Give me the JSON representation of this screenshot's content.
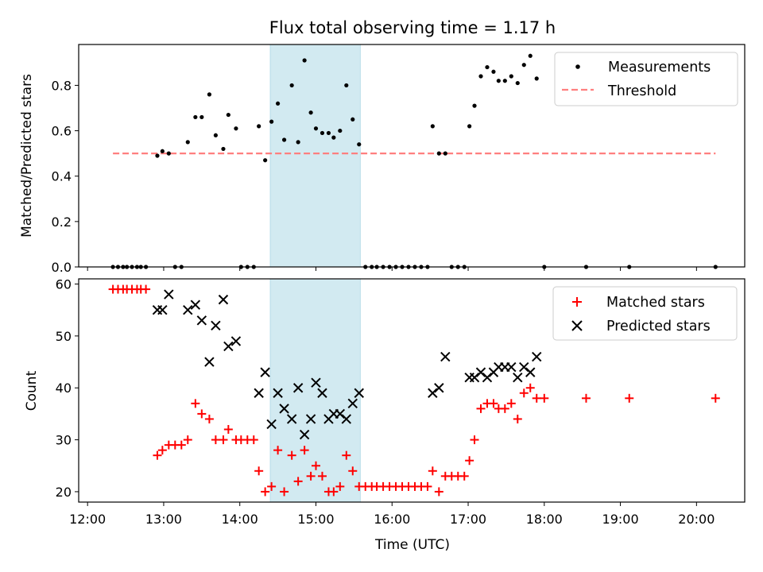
{
  "title": "Flux total observing time = 1.17 h",
  "xlabel": "Time (UTC)",
  "x_tick_labels": [
    "12:00",
    "13:00",
    "14:00",
    "15:00",
    "16:00",
    "17:00",
    "18:00",
    "19:00",
    "20:00"
  ],
  "colors": {
    "measurement": "#000000",
    "threshold": "#ff7f7f",
    "matched": "#ff0000",
    "predicted": "#000000",
    "highlight": "#add8e6"
  },
  "chart_data": [
    {
      "type": "scatter",
      "ylabel": "Matched/Predicted stars",
      "xlim": [
        "11:53",
        "20:38"
      ],
      "ylim": [
        0,
        0.98
      ],
      "y_ticks": [
        "0.0",
        "0.2",
        "0.4",
        "0.6",
        "0.8"
      ],
      "highlight_span": [
        "14:24",
        "15:35"
      ],
      "legend": {
        "position": "top-right",
        "entries": [
          "Measurements",
          "Threshold"
        ]
      },
      "threshold": {
        "name": "Threshold",
        "value": 0.5,
        "x_start": "12:20",
        "x_end": "20:15"
      },
      "series": [
        {
          "name": "Measurements",
          "points": [
            [
              "12:20",
              0
            ],
            [
              "12:24",
              0
            ],
            [
              "12:28",
              0
            ],
            [
              "12:31",
              0
            ],
            [
              "12:35",
              0
            ],
            [
              "12:39",
              0
            ],
            [
              "12:42",
              0
            ],
            [
              "12:46",
              0
            ],
            [
              "12:55",
              0.49
            ],
            [
              "12:59",
              0.51
            ],
            [
              "13:04",
              0.5
            ],
            [
              "13:09",
              0
            ],
            [
              "13:14",
              0
            ],
            [
              "13:19",
              0.55
            ],
            [
              "13:25",
              0.66
            ],
            [
              "13:30",
              0.66
            ],
            [
              "13:36",
              0.76
            ],
            [
              "13:41",
              0.58
            ],
            [
              "13:47",
              0.52
            ],
            [
              "13:51",
              0.67
            ],
            [
              "13:57",
              0.61
            ],
            [
              "14:01",
              0
            ],
            [
              "14:06",
              0
            ],
            [
              "14:11",
              0
            ],
            [
              "14:15",
              0.62
            ],
            [
              "14:20",
              0.47
            ],
            [
              "14:25",
              0.64
            ],
            [
              "14:30",
              0.72
            ],
            [
              "14:35",
              0.56
            ],
            [
              "14:41",
              0.8
            ],
            [
              "14:46",
              0.55
            ],
            [
              "14:51",
              0.91
            ],
            [
              "14:56",
              0.68
            ],
            [
              "15:00",
              0.61
            ],
            [
              "15:05",
              0.59
            ],
            [
              "15:10",
              0.59
            ],
            [
              "15:14",
              0.57
            ],
            [
              "15:19",
              0.6
            ],
            [
              "15:24",
              0.8
            ],
            [
              "15:29",
              0.65
            ],
            [
              "15:34",
              0.54
            ],
            [
              "15:39",
              0
            ],
            [
              "15:44",
              0
            ],
            [
              "15:48",
              0
            ],
            [
              "15:53",
              0
            ],
            [
              "15:58",
              0
            ],
            [
              "16:03",
              0
            ],
            [
              "16:08",
              0
            ],
            [
              "16:13",
              0
            ],
            [
              "16:18",
              0
            ],
            [
              "16:23",
              0
            ],
            [
              "16:28",
              0
            ],
            [
              "16:32",
              0.62
            ],
            [
              "16:37",
              0.5
            ],
            [
              "16:42",
              0.5
            ],
            [
              "16:47",
              0
            ],
            [
              "16:52",
              0
            ],
            [
              "16:57",
              0
            ],
            [
              "17:01",
              0.62
            ],
            [
              "17:05",
              0.71
            ],
            [
              "17:10",
              0.84
            ],
            [
              "17:15",
              0.88
            ],
            [
              "17:20",
              0.86
            ],
            [
              "17:24",
              0.82
            ],
            [
              "17:29",
              0.82
            ],
            [
              "17:34",
              0.84
            ],
            [
              "17:39",
              0.81
            ],
            [
              "17:44",
              0.89
            ],
            [
              "17:49",
              0.93
            ],
            [
              "17:54",
              0.83
            ],
            [
              "18:00",
              0
            ],
            [
              "18:33",
              0
            ],
            [
              "19:07",
              0
            ],
            [
              "20:15",
              0
            ]
          ]
        }
      ]
    },
    {
      "type": "scatter",
      "ylabel": "Count",
      "xlim": [
        "11:53",
        "20:38"
      ],
      "ylim": [
        18,
        61
      ],
      "y_ticks": [
        "20",
        "30",
        "40",
        "50",
        "60"
      ],
      "highlight_span": [
        "14:24",
        "15:35"
      ],
      "legend": {
        "position": "top-right",
        "entries": [
          "Matched stars",
          "Predicted stars"
        ]
      },
      "series": [
        {
          "name": "Matched stars",
          "marker": "plus",
          "points": [
            [
              "12:20",
              59
            ],
            [
              "12:24",
              59
            ],
            [
              "12:28",
              59
            ],
            [
              "12:31",
              59
            ],
            [
              "12:35",
              59
            ],
            [
              "12:39",
              59
            ],
            [
              "12:42",
              59
            ],
            [
              "12:46",
              59
            ],
            [
              "12:55",
              27
            ],
            [
              "12:59",
              28
            ],
            [
              "13:04",
              29
            ],
            [
              "13:09",
              29
            ],
            [
              "13:14",
              29
            ],
            [
              "13:19",
              30
            ],
            [
              "13:25",
              37
            ],
            [
              "13:30",
              35
            ],
            [
              "13:36",
              34
            ],
            [
              "13:41",
              30
            ],
            [
              "13:47",
              30
            ],
            [
              "13:51",
              32
            ],
            [
              "13:57",
              30
            ],
            [
              "14:01",
              30
            ],
            [
              "14:06",
              30
            ],
            [
              "14:11",
              30
            ],
            [
              "14:15",
              24
            ],
            [
              "14:20",
              20
            ],
            [
              "14:25",
              21
            ],
            [
              "14:30",
              28
            ],
            [
              "14:35",
              20
            ],
            [
              "14:41",
              27
            ],
            [
              "14:46",
              22
            ],
            [
              "14:51",
              28
            ],
            [
              "14:56",
              23
            ],
            [
              "15:00",
              25
            ],
            [
              "15:05",
              23
            ],
            [
              "15:10",
              20
            ],
            [
              "15:14",
              20
            ],
            [
              "15:19",
              21
            ],
            [
              "15:24",
              27
            ],
            [
              "15:29",
              24
            ],
            [
              "15:34",
              21
            ],
            [
              "15:39",
              21
            ],
            [
              "15:44",
              21
            ],
            [
              "15:48",
              21
            ],
            [
              "15:53",
              21
            ],
            [
              "15:58",
              21
            ],
            [
              "16:03",
              21
            ],
            [
              "16:08",
              21
            ],
            [
              "16:13",
              21
            ],
            [
              "16:18",
              21
            ],
            [
              "16:23",
              21
            ],
            [
              "16:28",
              21
            ],
            [
              "16:32",
              24
            ],
            [
              "16:37",
              20
            ],
            [
              "16:42",
              23
            ],
            [
              "16:47",
              23
            ],
            [
              "16:52",
              23
            ],
            [
              "16:57",
              23
            ],
            [
              "17:01",
              26
            ],
            [
              "17:05",
              30
            ],
            [
              "17:10",
              36
            ],
            [
              "17:15",
              37
            ],
            [
              "17:20",
              37
            ],
            [
              "17:24",
              36
            ],
            [
              "17:29",
              36
            ],
            [
              "17:34",
              37
            ],
            [
              "17:39",
              34
            ],
            [
              "17:44",
              39
            ],
            [
              "17:49",
              40
            ],
            [
              "17:54",
              38
            ],
            [
              "18:00",
              38
            ],
            [
              "18:33",
              38
            ],
            [
              "19:07",
              38
            ],
            [
              "20:15",
              38
            ]
          ]
        },
        {
          "name": "Predicted stars",
          "marker": "x",
          "points": [
            [
              "12:55",
              55
            ],
            [
              "12:59",
              55
            ],
            [
              "13:04",
              58
            ],
            [
              "13:19",
              55
            ],
            [
              "13:25",
              56
            ],
            [
              "13:30",
              53
            ],
            [
              "13:36",
              45
            ],
            [
              "13:41",
              52
            ],
            [
              "13:47",
              57
            ],
            [
              "13:51",
              48
            ],
            [
              "13:57",
              49
            ],
            [
              "14:15",
              39
            ],
            [
              "14:20",
              43
            ],
            [
              "14:25",
              33
            ],
            [
              "14:30",
              39
            ],
            [
              "14:35",
              36
            ],
            [
              "14:41",
              34
            ],
            [
              "14:46",
              40
            ],
            [
              "14:51",
              31
            ],
            [
              "14:56",
              34
            ],
            [
              "15:00",
              41
            ],
            [
              "15:05",
              39
            ],
            [
              "15:10",
              34
            ],
            [
              "15:14",
              35
            ],
            [
              "15:19",
              35
            ],
            [
              "15:24",
              34
            ],
            [
              "15:29",
              37
            ],
            [
              "15:34",
              39
            ],
            [
              "16:32",
              39
            ],
            [
              "16:37",
              40
            ],
            [
              "16:42",
              46
            ],
            [
              "17:01",
              42
            ],
            [
              "17:05",
              42
            ],
            [
              "17:10",
              43
            ],
            [
              "17:15",
              42
            ],
            [
              "17:20",
              43
            ],
            [
              "17:24",
              44
            ],
            [
              "17:29",
              44
            ],
            [
              "17:34",
              44
            ],
            [
              "17:39",
              42
            ],
            [
              "17:44",
              44
            ],
            [
              "17:49",
              43
            ],
            [
              "17:54",
              46
            ]
          ]
        }
      ]
    }
  ]
}
